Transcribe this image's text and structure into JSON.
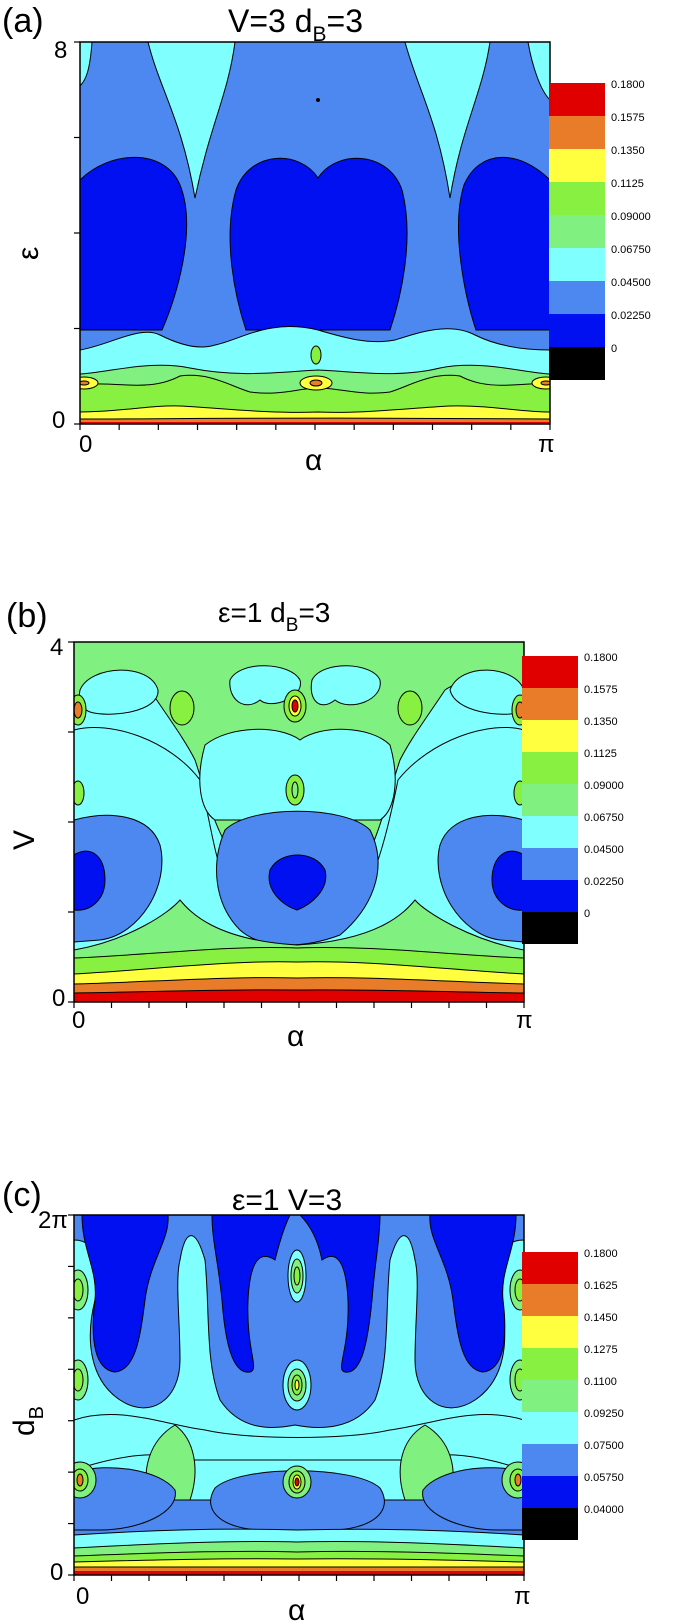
{
  "chart_data": [
    {
      "type": "heatmap",
      "panel_label": "(a)",
      "title_main": "V=3 d",
      "title_sub": "B",
      "title_tail": "=3",
      "ylabel": "ε",
      "xlabel": "α",
      "y_ticks": [
        "8",
        "0"
      ],
      "x_ticks": [
        "0",
        "π"
      ],
      "xlim": [
        0,
        3.1416
      ],
      "ylim": [
        0,
        8
      ],
      "levels": [
        "0.1800",
        "0.1575",
        "0.1350",
        "0.1125",
        "0.09000",
        "0.06750",
        "0.04500",
        "0.02250",
        "0"
      ],
      "colors": [
        "#e00000",
        "#e87c28",
        "#ffff40",
        "#88f040",
        "#80f080",
        "#80ffff",
        "#4c88f0",
        "#0010f0",
        "#000000"
      ]
    },
    {
      "type": "heatmap",
      "panel_label": "(b)",
      "title_main": "ε=1 d",
      "title_sub": "B",
      "title_tail": "=3",
      "ylabel": "V",
      "xlabel": "α",
      "y_ticks": [
        "4",
        "0"
      ],
      "x_ticks": [
        "0",
        "π"
      ],
      "xlim": [
        0,
        3.1416
      ],
      "ylim": [
        0,
        4
      ],
      "levels": [
        "0.1800",
        "0.1575",
        "0.1350",
        "0.1125",
        "0.09000",
        "0.06750",
        "0.04500",
        "0.02250",
        "0"
      ],
      "colors": [
        "#e00000",
        "#e87c28",
        "#ffff40",
        "#88f040",
        "#80f080",
        "#80ffff",
        "#4c88f0",
        "#0010f0",
        "#000000"
      ]
    },
    {
      "type": "heatmap",
      "panel_label": "(c)",
      "title_main": "ε=1 V=3",
      "title_sub": "",
      "title_tail": "",
      "ylabel": "d",
      "ylabel_sub": "B",
      "xlabel": "α",
      "y_ticks": [
        "2π",
        "0"
      ],
      "x_ticks": [
        "0",
        "π"
      ],
      "xlim": [
        0,
        3.1416
      ],
      "ylim": [
        0,
        6.2832
      ],
      "levels": [
        "0.1800",
        "0.1625",
        "0.1450",
        "0.1275",
        "0.1100",
        "0.09250",
        "0.07500",
        "0.05750",
        "0.04000"
      ],
      "colors": [
        "#e00000",
        "#e87c28",
        "#ffff40",
        "#88f040",
        "#80f080",
        "#80ffff",
        "#4c88f0",
        "#0010f0",
        "#000000"
      ]
    }
  ]
}
